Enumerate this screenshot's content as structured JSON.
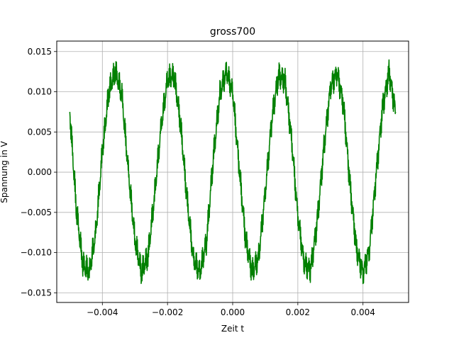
{
  "chart_data": {
    "type": "line",
    "title": "gross700",
    "xlabel": "Zeit t",
    "ylabel": "Spannung in V",
    "xlim": [
      -0.0054,
      0.0054
    ],
    "ylim": [
      -0.0162,
      0.0163
    ],
    "grid": true,
    "line_color": "#008000",
    "x_ticks": [
      -0.004,
      -0.002,
      0.0,
      0.002,
      0.004
    ],
    "x_tick_labels": [
      "−0.004",
      "−0.002",
      "0.000",
      "0.002",
      "0.004"
    ],
    "y_ticks": [
      -0.015,
      -0.01,
      -0.005,
      0.0,
      0.005,
      0.01,
      0.015
    ],
    "y_tick_labels": [
      "−0.015",
      "−0.010",
      "−0.005",
      "0.000",
      "0.005",
      "0.010",
      "0.015"
    ],
    "series": [
      {
        "x": [
          -0.005,
          -0.0048,
          -0.0046,
          -0.0044,
          -0.0042,
          -0.004,
          -0.0038,
          -0.0036,
          -0.0034,
          -0.0032,
          -0.003,
          -0.0028,
          -0.0026,
          -0.0024,
          -0.0022,
          -0.002,
          -0.0018,
          -0.0016,
          -0.0014,
          -0.0012,
          -0.001,
          -0.0008,
          -0.0006,
          -0.0004,
          -0.0002,
          0.0,
          0.0002,
          0.0004,
          0.0006,
          0.0008,
          0.001,
          0.0012,
          0.0014,
          0.0016,
          0.0018,
          0.002,
          0.0022,
          0.0024,
          0.0026,
          0.0028,
          0.003,
          0.0032,
          0.0034,
          0.0036,
          0.0038,
          0.004,
          0.0042,
          0.0044,
          0.0046,
          0.0048,
          0.005
        ],
        "y": [
          0.0075,
          -0.0045,
          -0.0115,
          -0.0125,
          -0.0075,
          0.0025,
          0.01,
          0.0125,
          0.0095,
          0.0,
          -0.0085,
          -0.0125,
          -0.0105,
          -0.003,
          0.0055,
          0.0115,
          0.012,
          0.006,
          -0.0035,
          -0.011,
          -0.0125,
          -0.0085,
          0.0015,
          0.0095,
          0.0125,
          0.01,
          0.0005,
          -0.0085,
          -0.0125,
          -0.0105,
          -0.0025,
          0.0065,
          0.012,
          0.0115,
          0.0045,
          -0.0055,
          -0.0115,
          -0.012,
          -0.006,
          0.003,
          0.0105,
          0.0125,
          0.0085,
          -0.0015,
          -0.0095,
          -0.0125,
          -0.0095,
          -0.0005,
          0.008,
          0.0125,
          0.0075
        ]
      }
    ]
  }
}
